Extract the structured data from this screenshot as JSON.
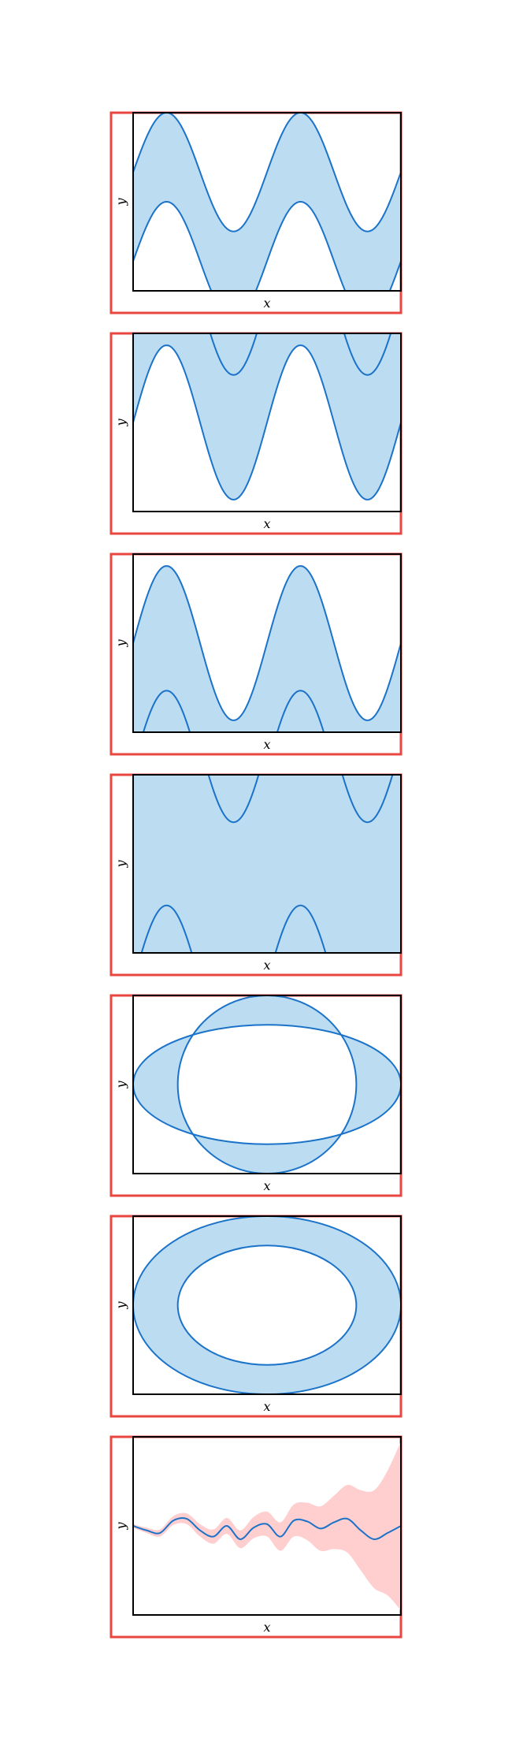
{
  "colors": {
    "fill": "#bcdcf2",
    "line": "#1b73c9",
    "red_fill": "#ffcfcf",
    "red_line": "#1b73c9",
    "frame": "#e8463f",
    "axes": "#000000"
  },
  "chart_data": [
    {
      "type": "area",
      "title": "",
      "xlabel": "x",
      "ylabel": "y",
      "grid": false,
      "xlim": [
        0,
        6.2832
      ],
      "ylim": [
        -1.5,
        1.5
      ],
      "description_curves": [
        {
          "fn": "sin",
          "amp": 1.0,
          "freq": 2,
          "offset": 0.5
        },
        {
          "fn": "sin",
          "amp": 1.0,
          "freq": 2,
          "offset": -1.0
        }
      ],
      "fill_between": [
        0,
        1
      ]
    },
    {
      "type": "area",
      "title": "",
      "xlabel": "x",
      "ylabel": "y",
      "grid": false,
      "xlim": [
        0,
        6.2832
      ],
      "ylim": [
        -1.5,
        1.5
      ],
      "description_curves": [
        {
          "fn": "sin",
          "amp": 1.3,
          "freq": 2,
          "offset": 0.0
        },
        {
          "fn": "sin",
          "amp": 1.3,
          "freq": 2,
          "offset": 2.1
        }
      ],
      "fill_between": [
        0,
        "top"
      ]
    },
    {
      "type": "area",
      "title": "",
      "xlabel": "x",
      "ylabel": "y",
      "grid": false,
      "xlim": [
        0,
        6.2832
      ],
      "ylim": [
        -1.5,
        1.5
      ],
      "description_curves": [
        {
          "fn": "sin",
          "amp": 1.3,
          "freq": 2,
          "offset": 0.0
        },
        {
          "fn": "sin",
          "amp": 1.3,
          "freq": 2,
          "offset": -2.1
        }
      ],
      "fill_between": [
        0,
        "bottom"
      ]
    },
    {
      "type": "area",
      "title": "",
      "xlabel": "x",
      "ylabel": "y",
      "grid": false,
      "xlim": [
        0,
        6.2832
      ],
      "ylim": [
        -1.5,
        1.5
      ],
      "description_curves": [
        {
          "fn": "sin",
          "amp": 1.3,
          "freq": 2,
          "offset": -2.0
        },
        {
          "fn": "sin",
          "amp": 1.3,
          "freq": 2,
          "offset": 2.0
        }
      ],
      "fill_between": [
        "bottom",
        "top"
      ]
    },
    {
      "type": "area",
      "title": "",
      "xlabel": "x",
      "ylabel": "y",
      "grid": false,
      "xlim": [
        -1.5,
        1.5
      ],
      "ylim": [
        -1.0,
        1.0
      ],
      "shapes": [
        {
          "kind": "ellipse",
          "cx": 0,
          "cy": 0,
          "rx": 1.5,
          "ry": 0.67
        },
        {
          "kind": "ellipse",
          "cx": 0,
          "cy": 0,
          "rx": 1.0,
          "ry": 1.0
        }
      ],
      "fill_rule": "symmetric-difference"
    },
    {
      "type": "area",
      "title": "",
      "xlabel": "x",
      "ylabel": "y",
      "grid": false,
      "xlim": [
        -1.5,
        1.5
      ],
      "ylim": [
        -1.0,
        1.0
      ],
      "shapes": [
        {
          "kind": "ellipse",
          "cx": 0,
          "cy": 0,
          "rx": 1.5,
          "ry": 1.0
        },
        {
          "kind": "ellipse",
          "cx": 0,
          "cy": 0,
          "rx": 1.0,
          "ry": 0.67
        }
      ],
      "fill_rule": "symmetric-difference"
    },
    {
      "type": "area",
      "title": "",
      "xlabel": "x",
      "ylabel": "y",
      "grid": false,
      "xlim": [
        0,
        10
      ],
      "ylim": [
        -1.0,
        1.0
      ],
      "series": [
        {
          "role": "mean",
          "x": [
            0,
            0.5,
            1,
            1.5,
            2,
            2.5,
            3,
            3.5,
            4,
            4.5,
            5,
            5.5,
            6,
            6.5,
            7,
            7.5,
            8,
            8.5,
            9,
            9.5,
            10
          ],
          "values": [
            0.0,
            -0.05,
            -0.08,
            0.06,
            0.08,
            -0.05,
            -0.12,
            0.0,
            -0.15,
            -0.02,
            0.02,
            -0.12,
            0.06,
            0.05,
            -0.03,
            0.04,
            0.08,
            -0.05,
            -0.15,
            -0.08,
            0.0
          ]
        },
        {
          "role": "band",
          "note": "uncertainty band widening with x",
          "lower_width": [
            0.02,
            0.03,
            0.04,
            0.05,
            0.06,
            0.07,
            0.08,
            0.09,
            0.1,
            0.12,
            0.14,
            0.16,
            0.18,
            0.21,
            0.25,
            0.3,
            0.38,
            0.45,
            0.55,
            0.7,
            0.95
          ],
          "upper_width": [
            0.02,
            0.03,
            0.04,
            0.05,
            0.06,
            0.07,
            0.08,
            0.09,
            0.1,
            0.12,
            0.14,
            0.16,
            0.18,
            0.21,
            0.25,
            0.3,
            0.38,
            0.45,
            0.55,
            0.7,
            0.95
          ]
        }
      ]
    }
  ]
}
